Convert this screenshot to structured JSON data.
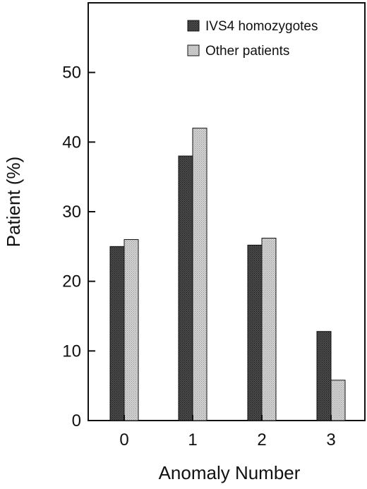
{
  "chart_data": {
    "type": "bar",
    "categories": [
      "0",
      "1",
      "2",
      "3"
    ],
    "series": [
      {
        "name": "IVS4 homozygotes",
        "values": [
          25,
          38,
          25.2,
          12.8
        ],
        "color": "#3a3a3a"
      },
      {
        "name": "Other patients",
        "values": [
          26,
          42,
          26.2,
          5.8
        ],
        "color": "#c8c8c8"
      }
    ],
    "xlabel": "Anomaly Number",
    "ylabel": "Patient (%)",
    "ylim": [
      0,
      60
    ],
    "yticks": [
      "0",
      "10",
      "20",
      "30",
      "40",
      "50"
    ],
    "grid": false,
    "legend_position": "top-right"
  }
}
